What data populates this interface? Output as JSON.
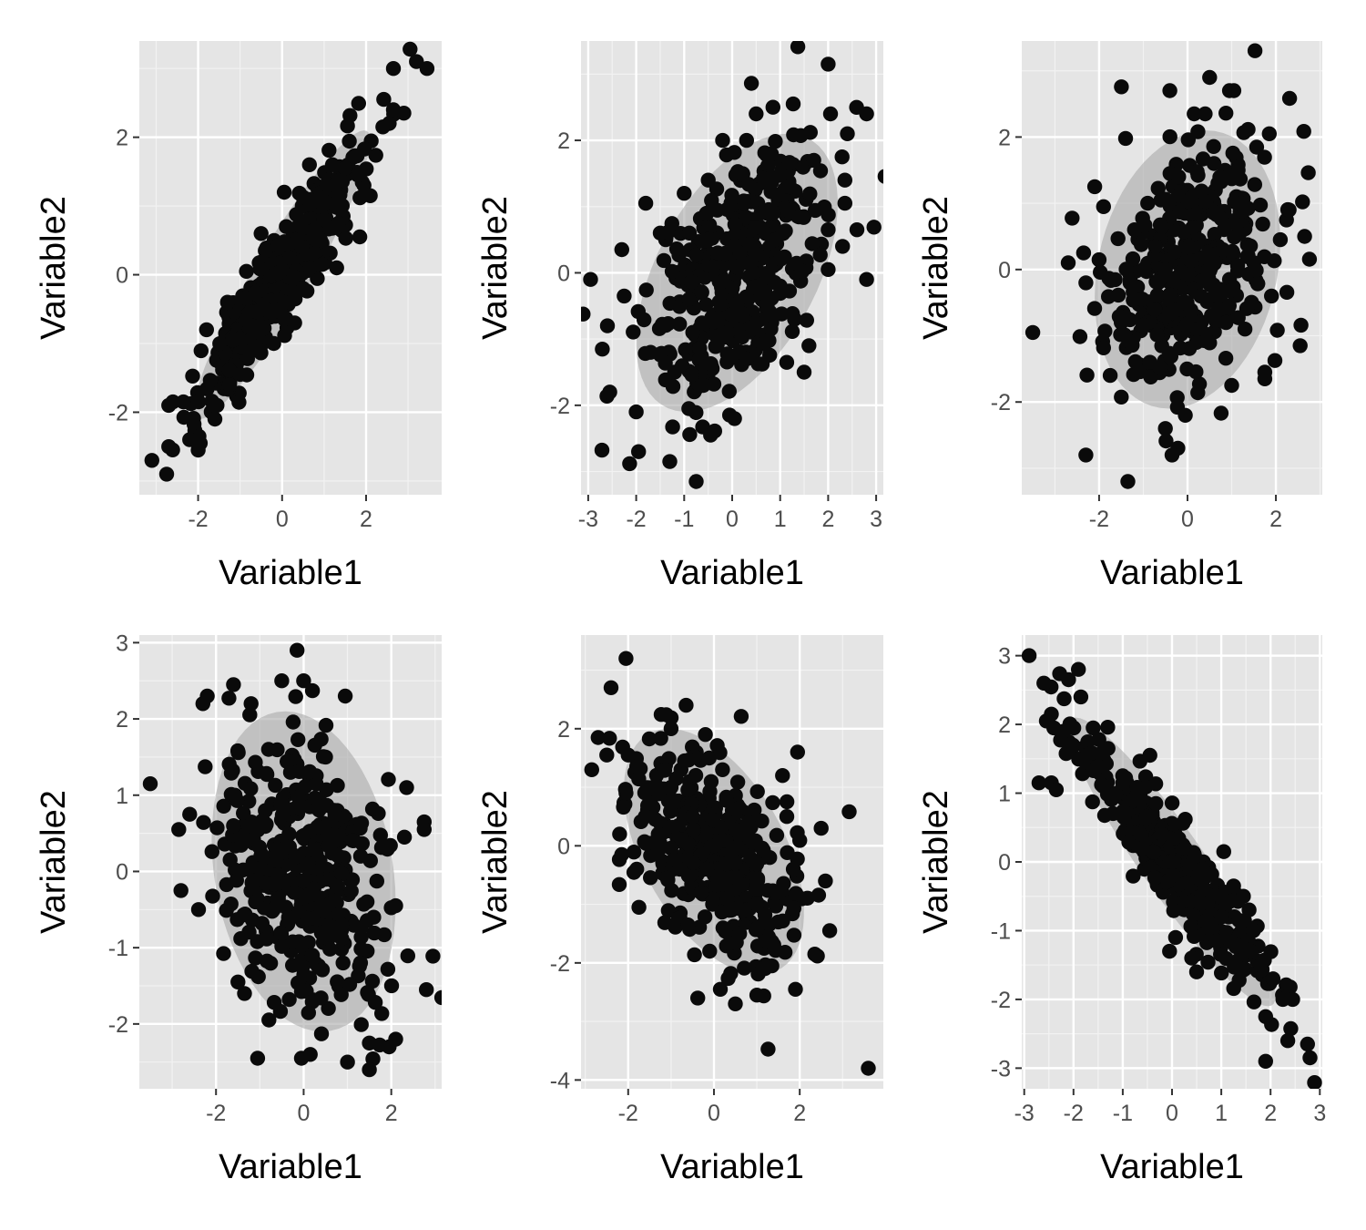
{
  "colors": {
    "panel_background": "#e5e5e5",
    "grid_major": "#ffffff",
    "grid_minor": "#f2f2f2",
    "points": "#0a0a0a",
    "ellipse": "#a9a9a9",
    "axis_text": "#4d4d4d",
    "axis_title": "#000000"
  },
  "chart_data": [
    {
      "type": "scatter",
      "xlabel": "Variable1",
      "ylabel": "Variable2",
      "xlim": [
        -3.4,
        3.8
      ],
      "ylim": [
        -3.2,
        3.4
      ],
      "xticks": [
        -2,
        0,
        2
      ],
      "yticks": [
        -2,
        0,
        2
      ],
      "grid": true,
      "correlation_pattern": "strong positive",
      "ellipse": {
        "cx": 0,
        "cy": 0,
        "sx": 1,
        "sy": 1,
        "r": 0.93
      },
      "points": [
        [
          3.2,
          3.1
        ],
        [
          3.45,
          3.0
        ],
        [
          2.65,
          3.0
        ],
        [
          2.9,
          2.35
        ],
        [
          2.65,
          2.4
        ],
        [
          2.4,
          2.15
        ],
        [
          2.55,
          2.2
        ],
        [
          2.1,
          1.15
        ],
        [
          1.85,
          0.55
        ],
        [
          1.95,
          1.3
        ],
        [
          1.8,
          1.45
        ],
        [
          1.5,
          1.55
        ],
        [
          1.2,
          1.6
        ],
        [
          1.0,
          0.8
        ],
        [
          0.8,
          0.6
        ],
        [
          1.3,
          1.05
        ],
        [
          -1.0,
          -1.45
        ],
        [
          -1.25,
          -1.6
        ],
        [
          -1.6,
          -2.1
        ],
        [
          -1.55,
          -1.9
        ],
        [
          -1.95,
          -2.45
        ],
        [
          -2.0,
          -2.55
        ],
        [
          -2.2,
          -2.4
        ],
        [
          -2.35,
          -1.85
        ],
        [
          -2.6,
          -1.85
        ],
        [
          -2.7,
          -1.9
        ],
        [
          -3.1,
          -2.7
        ],
        [
          -2.75,
          -2.9
        ],
        [
          -2.7,
          -2.5
        ],
        [
          -1.8,
          -0.8
        ],
        [
          -1.3,
          -0.4
        ],
        [
          -0.85,
          0.05
        ],
        [
          -0.4,
          0.35
        ],
        [
          0.05,
          1.2
        ],
        [
          0.65,
          1.6
        ],
        [
          -0.2,
          -1.0
        ],
        [
          0.3,
          -0.7
        ],
        [
          0.5,
          -0.2
        ],
        [
          0.95,
          0.15
        ],
        [
          1.3,
          0.1
        ],
        [
          -0.5,
          0.6
        ],
        [
          0.1,
          0.7
        ]
      ]
    },
    {
      "type": "scatter",
      "xlabel": "Variable1",
      "ylabel": "Variable2",
      "xlim": [
        -3.15,
        3.15
      ],
      "ylim": [
        -3.35,
        3.5
      ],
      "xticks": [
        -3,
        -2,
        -1,
        0,
        1,
        2,
        3
      ],
      "yticks": [
        -2,
        0,
        2
      ],
      "grid": true,
      "correlation_pattern": "moderate positive",
      "ellipse": {
        "cx": 0.1,
        "cy": 0,
        "sx": 1,
        "sy": 1,
        "r": 0.5
      },
      "points": [
        [
          2.0,
          3.15
        ],
        [
          2.8,
          2.4
        ],
        [
          2.4,
          2.1
        ],
        [
          2.05,
          2.4
        ],
        [
          2.35,
          1.4
        ],
        [
          2.35,
          1.05
        ],
        [
          2.0,
          0.65
        ],
        [
          2.6,
          0.65
        ],
        [
          2.3,
          0.4
        ],
        [
          2.0,
          0.05
        ],
        [
          2.8,
          -0.1
        ],
        [
          1.6,
          -1.1
        ],
        [
          1.5,
          -1.5
        ],
        [
          -2.95,
          -0.1
        ],
        [
          -2.6,
          -0.8
        ],
        [
          -2.3,
          0.35
        ],
        [
          -2.25,
          -0.35
        ],
        [
          -2.55,
          -1.8
        ],
        [
          -1.95,
          -2.7
        ],
        [
          -2.0,
          -2.1
        ],
        [
          -1.3,
          -2.85
        ],
        [
          -0.75,
          -3.15
        ],
        [
          -0.45,
          -2.45
        ],
        [
          0.05,
          -2.2
        ],
        [
          -0.2,
          2.0
        ],
        [
          0.5,
          2.4
        ],
        [
          0.85,
          2.5
        ],
        [
          1.2,
          1.3
        ],
        [
          -0.5,
          1.4
        ],
        [
          1.3,
          -0.7
        ],
        [
          -1.2,
          -1.5
        ],
        [
          -0.6,
          -1.7
        ],
        [
          0.3,
          -1.3
        ],
        [
          -1.8,
          1.05
        ],
        [
          -1.5,
          0.6
        ],
        [
          -0.9,
          -0.4
        ],
        [
          0.6,
          0.9
        ],
        [
          -0.3,
          0.3
        ],
        [
          1.7,
          1.7
        ],
        [
          -1.0,
          1.2
        ],
        [
          0.3,
          2.0
        ],
        [
          1.0,
          -0.2
        ],
        [
          -1.7,
          -1.2
        ],
        [
          -0.1,
          -0.9
        ],
        [
          0.9,
          0.5
        ]
      ]
    },
    {
      "type": "scatter",
      "xlabel": "Variable1",
      "ylabel": "Variable2",
      "xlim": [
        -3.75,
        3.05
      ],
      "ylim": [
        -3.4,
        3.45
      ],
      "xticks": [
        -2,
        0,
        2
      ],
      "yticks": [
        -2,
        0,
        2
      ],
      "grid": true,
      "correlation_pattern": "weak positive",
      "ellipse": {
        "cx": 0,
        "cy": 0,
        "sx": 1,
        "sy": 1,
        "r": 0.2
      },
      "points": [
        [
          -3.5,
          -0.95
        ],
        [
          -2.7,
          0.1
        ],
        [
          -2.35,
          0.25
        ],
        [
          -2.3,
          -0.2
        ],
        [
          -2.3,
          -2.8
        ],
        [
          -1.35,
          -3.2
        ],
        [
          -0.35,
          -2.8
        ],
        [
          -0.5,
          -2.4
        ],
        [
          -0.05,
          -2.2
        ],
        [
          0.5,
          2.9
        ],
        [
          0.95,
          2.7
        ],
        [
          1.05,
          2.7
        ],
        [
          -0.4,
          2.7
        ],
        [
          0.15,
          2.35
        ],
        [
          0.4,
          2.35
        ],
        [
          1.85,
          2.05
        ],
        [
          2.3,
          0.9
        ],
        [
          2.65,
          0.5
        ],
        [
          2.55,
          -1.15
        ],
        [
          2.1,
          0.45
        ],
        [
          1.75,
          -1.65
        ],
        [
          1.75,
          -1.55
        ],
        [
          1.0,
          -1.75
        ],
        [
          -1.9,
          0.95
        ],
        [
          -2.1,
          1.25
        ],
        [
          -1.75,
          -1.6
        ],
        [
          -0.85,
          -1.4
        ],
        [
          0.7,
          -0.6
        ],
        [
          1.2,
          1.0
        ],
        [
          -1.2,
          0.6
        ],
        [
          -0.5,
          0.0
        ],
        [
          0.3,
          -0.4
        ],
        [
          0.8,
          0.3
        ],
        [
          -1.5,
          -0.8
        ],
        [
          1.5,
          0.1
        ],
        [
          -0.2,
          1.4
        ],
        [
          0.2,
          -1.1
        ],
        [
          -0.9,
          1.0
        ],
        [
          1.3,
          -0.9
        ],
        [
          -1.3,
          -0.2
        ],
        [
          0.6,
          1.6
        ],
        [
          1.9,
          -0.4
        ]
      ]
    },
    {
      "type": "scatter",
      "xlabel": "Variable1",
      "ylabel": "Variable2",
      "xlim": [
        -3.75,
        3.15
      ],
      "ylim": [
        -2.85,
        3.1
      ],
      "xticks": [
        -2,
        0,
        2
      ],
      "yticks": [
        -2,
        -1,
        0,
        1,
        2,
        3
      ],
      "grid": true,
      "correlation_pattern": "weak negative",
      "ellipse": {
        "cx": 0,
        "cy": 0,
        "sx": 1,
        "sy": 1,
        "r": -0.2
      },
      "points": [
        [
          -3.5,
          1.15
        ],
        [
          -2.85,
          0.55
        ],
        [
          -2.6,
          0.75
        ],
        [
          -2.8,
          -0.25
        ],
        [
          -2.4,
          -0.5
        ],
        [
          -2.3,
          2.2
        ],
        [
          -2.2,
          2.3
        ],
        [
          -1.6,
          2.45
        ],
        [
          -1.2,
          2.2
        ],
        [
          -0.5,
          2.5
        ],
        [
          -0.15,
          2.9
        ],
        [
          0.0,
          2.5
        ],
        [
          0.95,
          2.3
        ],
        [
          2.35,
          1.1
        ],
        [
          2.75,
          0.65
        ],
        [
          2.75,
          0.55
        ],
        [
          2.3,
          0.45
        ],
        [
          2.1,
          -0.45
        ],
        [
          2.8,
          -1.55
        ],
        [
          2.1,
          -2.2
        ],
        [
          1.95,
          -2.3
        ],
        [
          1.5,
          -2.25
        ],
        [
          1.5,
          -2.6
        ],
        [
          1.0,
          -2.5
        ],
        [
          0.15,
          -2.4
        ],
        [
          -0.05,
          -2.45
        ],
        [
          -1.05,
          -2.45
        ],
        [
          -1.35,
          -1.6
        ],
        [
          -1.5,
          -1.45
        ],
        [
          0.2,
          -1.1
        ],
        [
          -0.6,
          0.3
        ],
        [
          0.4,
          -0.5
        ],
        [
          0.7,
          0.8
        ],
        [
          -1.1,
          -0.4
        ],
        [
          1.3,
          0.2
        ],
        [
          -0.3,
          1.3
        ],
        [
          0.9,
          -1.2
        ],
        [
          -1.6,
          0.6
        ],
        [
          1.6,
          -0.6
        ],
        [
          0.1,
          0.1
        ],
        [
          -0.8,
          1.6
        ],
        [
          0.5,
          1.5
        ]
      ]
    },
    {
      "type": "scatter",
      "xlabel": "Variable1",
      "ylabel": "Variable2",
      "xlim": [
        -3.1,
        3.95
      ],
      "ylim": [
        -4.15,
        3.6
      ],
      "xticks": [
        -2,
        0,
        2
      ],
      "yticks": [
        -4,
        -2,
        0,
        2
      ],
      "grid": true,
      "correlation_pattern": "moderate negative",
      "ellipse": {
        "cx": 0,
        "cy": -0.1,
        "sx": 1,
        "sy": 1,
        "r": -0.5
      },
      "points": [
        [
          -2.05,
          3.2
        ],
        [
          -2.4,
          2.7
        ],
        [
          -2.7,
          1.85
        ],
        [
          -2.5,
          1.55
        ],
        [
          -2.0,
          1.55
        ],
        [
          -2.85,
          1.3
        ],
        [
          -2.05,
          0.9
        ],
        [
          -2.2,
          0.2
        ],
        [
          -2.15,
          -0.15
        ],
        [
          -1.8,
          -0.4
        ],
        [
          -1.75,
          -1.05
        ],
        [
          -1.6,
          0.5
        ],
        [
          -0.65,
          2.4
        ],
        [
          -1.0,
          2.0
        ],
        [
          -0.2,
          1.9
        ],
        [
          1.6,
          1.2
        ],
        [
          1.95,
          1.6
        ],
        [
          1.7,
          0.5
        ],
        [
          1.85,
          -0.4
        ],
        [
          2.6,
          -0.6
        ],
        [
          2.7,
          -1.45
        ],
        [
          2.35,
          -1.85
        ],
        [
          1.9,
          -2.45
        ],
        [
          1.35,
          -2.05
        ],
        [
          1.0,
          -2.55
        ],
        [
          0.5,
          -2.7
        ],
        [
          0.15,
          -2.45
        ],
        [
          -0.1,
          -1.8
        ],
        [
          3.6,
          -3.8
        ],
        [
          0.0,
          0.0
        ],
        [
          0.5,
          -0.3
        ],
        [
          -0.5,
          0.5
        ],
        [
          1.0,
          -1.0
        ],
        [
          -1.0,
          1.0
        ],
        [
          0.8,
          0.4
        ],
        [
          -0.3,
          -0.8
        ],
        [
          1.3,
          -0.2
        ],
        [
          -1.3,
          0.2
        ],
        [
          0.2,
          1.3
        ],
        [
          0.6,
          -1.5
        ],
        [
          -0.8,
          -0.4
        ],
        [
          1.5,
          -1.3
        ]
      ]
    },
    {
      "type": "scatter",
      "xlabel": "Variable1",
      "ylabel": "Variable2",
      "xlim": [
        -3.05,
        3.05
      ],
      "ylim": [
        -3.3,
        3.3
      ],
      "xticks": [
        -3,
        -2,
        -1,
        0,
        1,
        2,
        3
      ],
      "yticks": [
        -3,
        -2,
        -1,
        0,
        1,
        2,
        3
      ],
      "grid": true,
      "correlation_pattern": "strong negative",
      "ellipse": {
        "cx": 0,
        "cy": 0,
        "sx": 1,
        "sy": 1,
        "r": -0.93
      },
      "points": [
        [
          -2.9,
          3.0
        ],
        [
          -2.6,
          2.6
        ],
        [
          -2.1,
          2.65
        ],
        [
          -1.9,
          2.8
        ],
        [
          -1.85,
          2.4
        ],
        [
          -2.45,
          2.15
        ],
        [
          -2.55,
          2.05
        ],
        [
          -2.7,
          1.15
        ],
        [
          -2.45,
          1.15
        ],
        [
          -2.35,
          1.05
        ],
        [
          -2.2,
          1.9
        ],
        [
          -2.4,
          1.95
        ],
        [
          -1.6,
          1.95
        ],
        [
          -1.3,
          1.65
        ],
        [
          -1.0,
          1.15
        ],
        [
          -0.45,
          1.55
        ],
        [
          1.05,
          0.15
        ],
        [
          1.25,
          -0.35
        ],
        [
          1.45,
          -0.5
        ],
        [
          1.65,
          -1.0
        ],
        [
          1.8,
          -1.5
        ],
        [
          2.05,
          -1.7
        ],
        [
          2.35,
          -1.95
        ],
        [
          2.25,
          -2.0
        ],
        [
          2.45,
          -2.0
        ],
        [
          1.9,
          -2.25
        ],
        [
          1.9,
          -2.9
        ],
        [
          2.35,
          -2.6
        ],
        [
          2.75,
          -2.65
        ],
        [
          2.8,
          -2.85
        ],
        [
          0.9,
          -1.15
        ],
        [
          1.0,
          -0.8
        ],
        [
          0.5,
          -1.6
        ],
        [
          0.4,
          -1.4
        ],
        [
          -0.05,
          -1.3
        ],
        [
          -1.0,
          0.7
        ],
        [
          -0.6,
          0.2
        ],
        [
          0.3,
          -0.3
        ],
        [
          0.6,
          -0.6
        ],
        [
          -0.2,
          0.4
        ],
        [
          0.0,
          0.0
        ],
        [
          -1.4,
          1.1
        ],
        [
          1.6,
          -1.3
        ],
        [
          -0.8,
          0.9
        ],
        [
          0.8,
          -0.9
        ]
      ]
    }
  ]
}
